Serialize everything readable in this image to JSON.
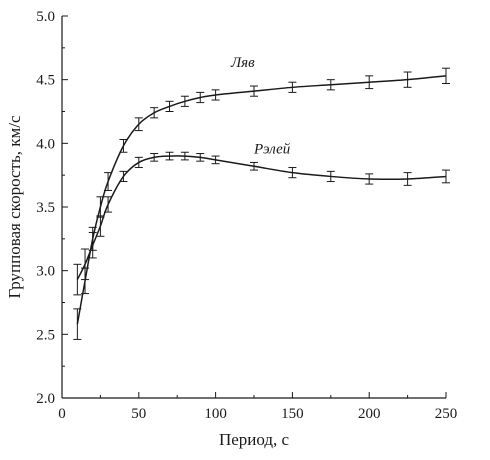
{
  "chart_data": {
    "type": "line",
    "title": "",
    "xlabel": "Период, с",
    "ylabel": "Групповая скорость, км/с",
    "xlim": [
      0,
      250
    ],
    "ylim": [
      2.0,
      5.0
    ],
    "xticks": [
      0,
      50,
      100,
      150,
      200,
      250
    ],
    "yticks": [
      2.0,
      2.5,
      3.0,
      3.5,
      4.0,
      4.5,
      5.0
    ],
    "ytick_labels": [
      "2.0",
      "2.5",
      "3.0",
      "3.5",
      "4.0",
      "4.5",
      "5.0"
    ],
    "grid": false,
    "legend": "none",
    "error_bars": true,
    "series": [
      {
        "name": "Ляв",
        "label_at": [
          110,
          4.6
        ],
        "points": [
          {
            "x": 10,
            "y": 2.58,
            "err": 0.12
          },
          {
            "x": 15,
            "y": 2.92,
            "err": 0.1
          },
          {
            "x": 20,
            "y": 3.25,
            "err": 0.09
          },
          {
            "x": 25,
            "y": 3.5,
            "err": 0.08
          },
          {
            "x": 30,
            "y": 3.7,
            "err": 0.07
          },
          {
            "x": 40,
            "y": 3.98,
            "err": 0.05
          },
          {
            "x": 50,
            "y": 4.15,
            "err": 0.05
          },
          {
            "x": 60,
            "y": 4.24,
            "err": 0.04
          },
          {
            "x": 70,
            "y": 4.29,
            "err": 0.04
          },
          {
            "x": 80,
            "y": 4.33,
            "err": 0.04
          },
          {
            "x": 90,
            "y": 4.36,
            "err": 0.04
          },
          {
            "x": 100,
            "y": 4.38,
            "err": 0.04
          },
          {
            "x": 125,
            "y": 4.41,
            "err": 0.04
          },
          {
            "x": 150,
            "y": 4.44,
            "err": 0.04
          },
          {
            "x": 175,
            "y": 4.46,
            "err": 0.04
          },
          {
            "x": 200,
            "y": 4.48,
            "err": 0.05
          },
          {
            "x": 225,
            "y": 4.5,
            "err": 0.06
          },
          {
            "x": 250,
            "y": 4.53,
            "err": 0.06
          }
        ]
      },
      {
        "name": "Рэлей",
        "label_at": [
          125,
          3.92
        ],
        "points": [
          {
            "x": 10,
            "y": 2.93,
            "err": 0.12
          },
          {
            "x": 15,
            "y": 3.05,
            "err": 0.12
          },
          {
            "x": 20,
            "y": 3.2,
            "err": 0.1
          },
          {
            "x": 25,
            "y": 3.35,
            "err": 0.08
          },
          {
            "x": 30,
            "y": 3.52,
            "err": 0.06
          },
          {
            "x": 40,
            "y": 3.74,
            "err": 0.04
          },
          {
            "x": 50,
            "y": 3.85,
            "err": 0.04
          },
          {
            "x": 60,
            "y": 3.89,
            "err": 0.03
          },
          {
            "x": 70,
            "y": 3.9,
            "err": 0.03
          },
          {
            "x": 80,
            "y": 3.9,
            "err": 0.03
          },
          {
            "x": 90,
            "y": 3.89,
            "err": 0.03
          },
          {
            "x": 100,
            "y": 3.87,
            "err": 0.03
          },
          {
            "x": 125,
            "y": 3.82,
            "err": 0.03
          },
          {
            "x": 150,
            "y": 3.77,
            "err": 0.04
          },
          {
            "x": 175,
            "y": 3.74,
            "err": 0.04
          },
          {
            "x": 200,
            "y": 3.72,
            "err": 0.04
          },
          {
            "x": 225,
            "y": 3.72,
            "err": 0.05
          },
          {
            "x": 250,
            "y": 3.74,
            "err": 0.05
          }
        ]
      }
    ]
  }
}
